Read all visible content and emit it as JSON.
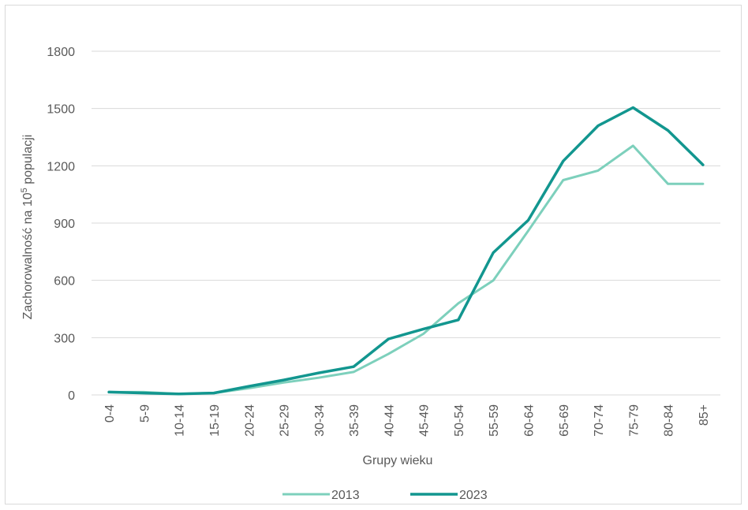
{
  "chart_data": {
    "type": "line",
    "title": "",
    "xlabel": "Grupy wieku",
    "ylabel_main": "Zachorowalność na 10",
    "ylabel_sup": "5",
    "ylabel_rest": " populacji",
    "ylim": [
      0,
      1800
    ],
    "yticks": [
      0,
      300,
      600,
      900,
      1200,
      1500,
      1800
    ],
    "grid": true,
    "legend_position": "bottom",
    "categories": [
      "0-4",
      "5-9",
      "10-14",
      "15-19",
      "20-24",
      "25-29",
      "30-34",
      "35-39",
      "40-44",
      "45-49",
      "50-54",
      "55-59",
      "60-64",
      "65-69",
      "70-74",
      "75-79",
      "80-84",
      "85+"
    ],
    "series": [
      {
        "name": "2013",
        "color": "#7dd0bc",
        "values": [
          15,
          15,
          5,
          10,
          35,
          65,
          90,
          120,
          215,
          320,
          480,
          600,
          860,
          1125,
          1175,
          1305,
          1105,
          1105
        ]
      },
      {
        "name": "2023",
        "color": "#12968f",
        "values": [
          15,
          10,
          5,
          10,
          45,
          78,
          115,
          148,
          293,
          345,
          393,
          745,
          915,
          1225,
          1410,
          1505,
          1385,
          1205
        ]
      }
    ]
  }
}
